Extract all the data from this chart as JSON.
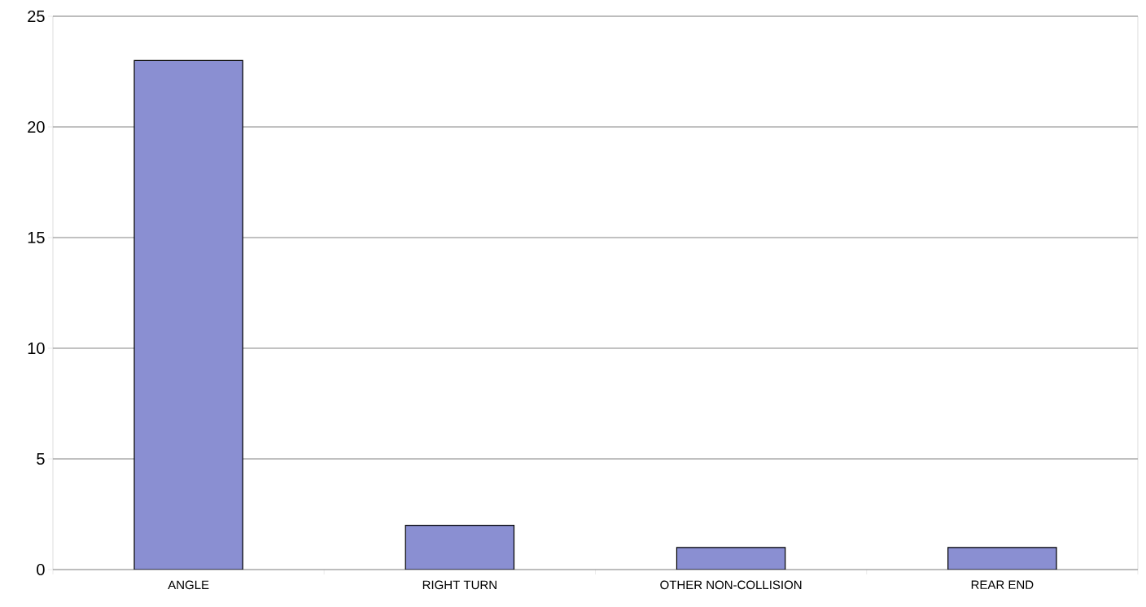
{
  "chart_data": {
    "type": "bar",
    "categories": [
      "ANGLE",
      "RIGHT TURN",
      "OTHER NON-COLLISION",
      "REAR END"
    ],
    "values": [
      23,
      2,
      1,
      1
    ],
    "color": "#8a8fd2",
    "ylim": [
      0,
      25
    ],
    "yticks": [
      0,
      5,
      10,
      15,
      20,
      25
    ],
    "grid": "y"
  }
}
